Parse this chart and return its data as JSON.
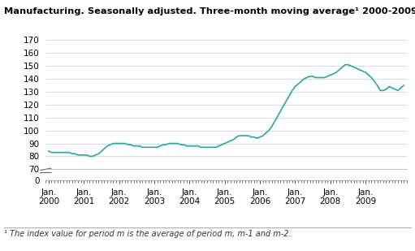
{
  "title": "Manufacturing. Seasonally adjusted. Three-month moving average¹ 2000-2009",
  "footnote": "¹ The index value for period m is the average of period m, m-1 and m-2.",
  "ylim_main": [
    70,
    170
  ],
  "ylim_break": [
    0,
    5
  ],
  "yticks_main": [
    70,
    80,
    90,
    100,
    110,
    120,
    130,
    140,
    150,
    160,
    170
  ],
  "ytick_break": [
    0
  ],
  "line_color": "#2aa89a",
  "background_color": "#ffffff",
  "grid_color": "#cccccc",
  "start_year": 2000,
  "y_values": [
    84,
    83,
    83,
    83,
    83,
    83,
    83,
    83,
    82,
    82,
    81,
    81,
    81,
    81,
    80,
    80,
    81,
    82,
    84,
    86,
    88,
    89,
    90,
    90,
    90,
    90,
    90,
    89,
    89,
    88,
    88,
    88,
    87,
    87,
    87,
    87,
    87,
    87,
    88,
    89,
    89,
    90,
    90,
    90,
    90,
    89,
    89,
    88,
    88,
    88,
    88,
    88,
    87,
    87,
    87,
    87,
    87,
    87,
    88,
    89,
    90,
    91,
    92,
    93,
    95,
    96,
    96,
    96,
    96,
    95,
    95,
    94,
    95,
    96,
    98,
    100,
    103,
    107,
    111,
    115,
    119,
    123,
    127,
    131,
    134,
    136,
    138,
    140,
    141,
    142,
    142,
    141,
    141,
    141,
    141,
    142,
    143,
    144,
    145,
    147,
    149,
    151,
    151,
    150,
    149,
    148,
    147,
    146,
    145,
    143,
    141,
    138,
    135,
    131,
    131,
    132,
    134,
    133,
    132,
    131,
    133,
    135
  ],
  "xlabel_years": [
    "Jan.\n2000",
    "Jan.\n2001",
    "Jan.\n2002",
    "Jan.\n2003",
    "Jan.\n2004",
    "Jan.\n2005",
    "Jan.\n2006",
    "Jan.\n2007",
    "Jan.\n2008",
    "Jan.\n2009"
  ]
}
